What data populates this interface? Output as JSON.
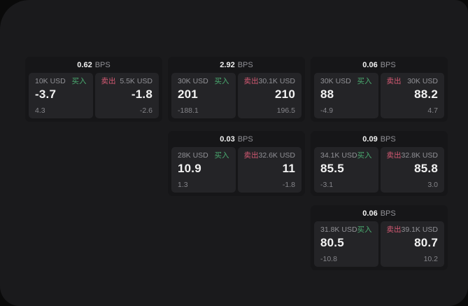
{
  "labels": {
    "bps_unit": "BPS",
    "buy": "买入",
    "sell": "卖出"
  },
  "colors": {
    "page_bg": "#0a0a0a",
    "window_bg": "#1a1a1c",
    "card_bg": "#161618",
    "panel_bg": "#242427",
    "buy_green": "#4aab70",
    "sell_red": "#d65a74",
    "text_primary": "#f2f2f2",
    "text_muted": "#919196"
  },
  "cards": [
    {
      "bps": "0.62",
      "buy": {
        "amount": "10K USD",
        "value": "-3.7",
        "delta": "4.3"
      },
      "sell": {
        "amount": "5.5K USD",
        "value": "-1.8",
        "delta": "-2.6"
      }
    },
    {
      "bps": "2.92",
      "buy": {
        "amount": "30K USD",
        "value": "201",
        "delta": "-188.1"
      },
      "sell": {
        "amount": "30.1K USD",
        "value": "210",
        "delta": "196.5"
      }
    },
    {
      "bps": "0.06",
      "buy": {
        "amount": "30K USD",
        "value": "88",
        "delta": "-4.9"
      },
      "sell": {
        "amount": "30K USD",
        "value": "88.2",
        "delta": "4.7"
      }
    },
    {
      "bps": "0.03",
      "buy": {
        "amount": "28K USD",
        "value": "10.9",
        "delta": "1.3"
      },
      "sell": {
        "amount": "32.6K USD",
        "value": "11",
        "delta": "-1.8"
      }
    },
    {
      "bps": "0.09",
      "buy": {
        "amount": "34.1K USD",
        "value": "85.5",
        "delta": "-3.1"
      },
      "sell": {
        "amount": "32.8K USD",
        "value": "85.8",
        "delta": "3.0"
      }
    },
    {
      "bps": "0.06",
      "buy": {
        "amount": "31.8K USD",
        "value": "80.5",
        "delta": "-10.8"
      },
      "sell": {
        "amount": "39.1K USD",
        "value": "80.7",
        "delta": "10.2"
      }
    }
  ]
}
